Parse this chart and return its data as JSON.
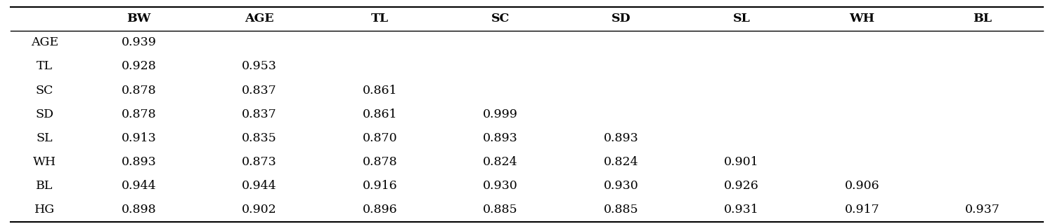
{
  "col_headers": [
    "",
    "BW",
    "AGE",
    "TL",
    "SC",
    "SD",
    "SL",
    "WH",
    "BL"
  ],
  "row_headers": [
    "AGE",
    "TL",
    "SC",
    "SD",
    "SL",
    "WH",
    "BL",
    "HG"
  ],
  "table_data": [
    [
      "AGE",
      "0.939",
      "",
      "",
      "",
      "",
      "",
      "",
      ""
    ],
    [
      "TL",
      "0.928",
      "0.953",
      "",
      "",
      "",
      "",
      "",
      ""
    ],
    [
      "SC",
      "0.878",
      "0.837",
      "0.861",
      "",
      "",
      "",
      "",
      ""
    ],
    [
      "SD",
      "0.878",
      "0.837",
      "0.861",
      "0.999",
      "",
      "",
      "",
      ""
    ],
    [
      "SL",
      "0.913",
      "0.835",
      "0.870",
      "0.893",
      "0.893",
      "",
      "",
      ""
    ],
    [
      "WH",
      "0.893",
      "0.873",
      "0.878",
      "0.824",
      "0.824",
      "0.901",
      "",
      ""
    ],
    [
      "BL",
      "0.944",
      "0.944",
      "0.916",
      "0.930",
      "0.930",
      "0.926",
      "0.906",
      ""
    ],
    [
      "HG",
      "0.898",
      "0.902",
      "0.896",
      "0.885",
      "0.885",
      "0.931",
      "0.917",
      "0.937"
    ]
  ],
  "background_color": "#ffffff",
  "text_color": "#000000",
  "font_size": 12.5,
  "figsize": [
    14.91,
    3.2
  ],
  "dpi": 100
}
